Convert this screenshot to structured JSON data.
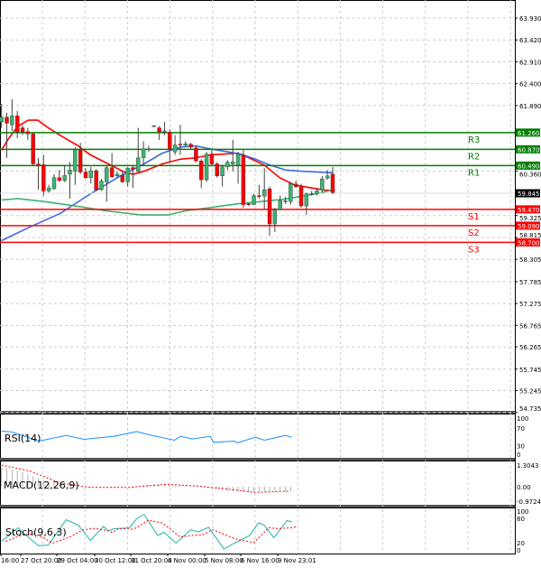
{
  "price_axis": {
    "labels": [
      63.93,
      63.42,
      62.91,
      62.4,
      61.89,
      60.36,
      59.325,
      58.815,
      58.305,
      57.785,
      57.275,
      56.765,
      56.265,
      55.745,
      55.245,
      54.735
    ],
    "label_text": [
      "63.930",
      "63.420",
      "62.910",
      "62.400",
      "61.890",
      "60.360",
      "59.325",
      "58.815",
      "58.305",
      "57.785",
      "57.275",
      "56.765",
      "56.265",
      "55.745",
      "55.245",
      "54.735"
    ]
  },
  "current_price": {
    "value": 59.845,
    "text": "59.845",
    "color": "#000000"
  },
  "levels": [
    {
      "name": "R3",
      "value": 61.26,
      "text": "61.260",
      "color": "#008000"
    },
    {
      "name": "R2",
      "value": 60.87,
      "text": "60.870",
      "color": "#008000"
    },
    {
      "name": "R1",
      "value": 60.49,
      "text": "60.490",
      "color": "#008000"
    },
    {
      "name": "S1",
      "value": 59.47,
      "text": "59.470",
      "color": "#ff0000"
    },
    {
      "name": "S2",
      "value": 59.09,
      "text": "59.090",
      "color": "#ff0000"
    },
    {
      "name": "S3",
      "value": 58.7,
      "text": "58.700",
      "color": "#ff0000"
    }
  ],
  "time_axis": [
    "16:00",
    "27 Oct 20:00",
    "29 Oct 04:00",
    "30 Oct 12:00",
    "31 Oct 20:00",
    "4 Nov 00:00",
    "5 Nov 08:00",
    "6 Nov 16:00",
    "9 Nov 23:01"
  ],
  "colors": {
    "up": "#3cb371",
    "down": "#ff0000",
    "ma_fast": "#ff0000",
    "ma_mid": "#4169e1",
    "ma_slow": "#3cb371",
    "rsi": "#1e90ff",
    "stoch_main": "#20b2aa",
    "stoch_signal": "#ff0000",
    "macd_signal": "#ff0000",
    "macd_hist": "#a0a0a0"
  },
  "chart_data": {
    "type": "candlestick",
    "ohlc": [
      [
        61.51,
        61.93,
        61.37,
        61.62
      ],
      [
        61.62,
        61.72,
        60.67,
        61.48
      ],
      [
        61.44,
        62.04,
        61.3,
        61.65
      ],
      [
        61.65,
        61.76,
        61.13,
        61.27
      ],
      [
        61.37,
        61.44,
        61.2,
        61.27
      ],
      [
        61.28,
        61.37,
        61.09,
        61.23
      ],
      [
        61.23,
        61.27,
        60.5,
        60.53
      ],
      [
        60.53,
        60.67,
        59.93,
        60.48
      ],
      [
        60.51,
        60.74,
        59.79,
        59.9
      ],
      [
        59.9,
        60.04,
        59.86,
        59.97
      ],
      [
        59.95,
        60.29,
        59.93,
        60.21
      ],
      [
        60.21,
        60.39,
        60.11,
        60.14
      ],
      [
        60.14,
        60.5,
        60.11,
        60.26
      ],
      [
        60.29,
        60.57,
        59.72,
        60.39
      ],
      [
        60.36,
        60.92,
        60.04,
        60.86
      ],
      [
        60.85,
        61.02,
        60.29,
        60.34
      ],
      [
        60.34,
        60.43,
        60.18,
        60.21
      ],
      [
        60.21,
        60.46,
        60.07,
        60.37
      ],
      [
        60.37,
        60.41,
        59.9,
        59.92
      ],
      [
        59.93,
        60.18,
        59.9,
        60.13
      ],
      [
        60.11,
        60.5,
        59.65,
        60.44
      ],
      [
        60.44,
        60.78,
        60.2,
        60.23
      ],
      [
        60.25,
        60.36,
        60.21,
        60.29
      ],
      [
        60.27,
        60.36,
        60.09,
        60.11
      ],
      [
        60.11,
        60.46,
        60.0,
        60.43
      ],
      [
        60.44,
        60.5,
        59.97,
        60.41
      ],
      [
        60.36,
        61.37,
        60.34,
        60.67
      ],
      [
        60.67,
        61.06,
        60.53,
        60.88
      ],
      [
        60.86,
        60.95,
        60.81,
        60.88
      ],
      [
        61.41,
        61.44,
        61.39,
        61.42
      ],
      [
        61.37,
        61.41,
        61.09,
        61.27
      ],
      [
        61.27,
        61.51,
        61.2,
        61.3
      ],
      [
        61.27,
        61.34,
        60.57,
        60.88
      ],
      [
        60.81,
        61.2,
        60.74,
        60.97
      ],
      [
        60.99,
        61.44,
        60.74,
        60.97
      ],
      [
        60.97,
        61.06,
        60.92,
        61.0
      ],
      [
        60.99,
        61.02,
        60.88,
        60.92
      ],
      [
        60.9,
        60.95,
        60.57,
        60.6
      ],
      [
        60.6,
        60.64,
        59.97,
        60.16
      ],
      [
        60.16,
        60.81,
        60.11,
        60.76
      ],
      [
        60.76,
        60.85,
        60.5,
        60.53
      ],
      [
        60.53,
        60.57,
        60.21,
        60.25
      ],
      [
        60.25,
        60.5,
        60.0,
        60.46
      ],
      [
        60.46,
        60.62,
        60.39,
        60.57
      ],
      [
        60.53,
        61.09,
        60.36,
        60.58
      ],
      [
        60.5,
        60.81,
        60.07,
        60.76
      ],
      [
        60.74,
        60.85,
        59.51,
        59.58
      ],
      [
        59.6,
        59.62,
        59.55,
        59.58
      ],
      [
        59.58,
        59.83,
        59.57,
        59.79
      ],
      [
        59.79,
        60.04,
        59.72,
        59.78
      ],
      [
        59.78,
        60.43,
        59.48,
        59.93
      ],
      [
        59.95,
        60.0,
        58.85,
        59.13
      ],
      [
        59.13,
        59.51,
        58.94,
        59.46
      ],
      [
        59.46,
        59.79,
        59.44,
        59.67
      ],
      [
        59.65,
        59.76,
        59.6,
        59.67
      ],
      [
        59.65,
        60.11,
        59.58,
        60.07
      ],
      [
        60.06,
        60.14,
        59.97,
        60.0
      ],
      [
        60.02,
        60.07,
        59.51,
        59.55
      ],
      [
        59.55,
        59.86,
        59.34,
        59.83
      ],
      [
        59.83,
        59.9,
        59.79,
        59.84
      ],
      [
        59.83,
        59.97,
        59.79,
        59.9
      ],
      [
        59.92,
        60.25,
        59.86,
        60.18
      ],
      [
        60.2,
        60.39,
        60.16,
        60.25
      ],
      [
        60.29,
        60.46,
        59.83,
        59.86
      ]
    ],
    "ylim": [
      54.6,
      64.3
    ],
    "moving_averages": [
      {
        "key": "ma_fast",
        "points": [
          [
            0,
            60.85
          ],
          [
            1.4,
            61.13
          ],
          [
            3.1,
            61.41
          ],
          [
            5.1,
            61.55
          ],
          [
            6.9,
            61.55
          ],
          [
            8.9,
            61.37
          ],
          [
            11.1,
            61.2
          ],
          [
            14.6,
            60.95
          ],
          [
            16.9,
            60.74
          ],
          [
            20.3,
            60.53
          ],
          [
            23.7,
            60.32
          ],
          [
            25.1,
            60.29
          ],
          [
            27.1,
            60.36
          ],
          [
            30.6,
            60.53
          ],
          [
            34,
            60.64
          ],
          [
            36.9,
            60.67
          ],
          [
            39.7,
            60.74
          ],
          [
            44.9,
            60.78
          ],
          [
            47.1,
            60.67
          ],
          [
            50,
            60.5
          ],
          [
            52.9,
            60.21
          ],
          [
            55.7,
            60.04
          ],
          [
            58,
            59.99
          ],
          [
            61.4,
            59.92
          ],
          [
            63.4,
            59.9
          ]
        ]
      },
      {
        "key": "ma_mid",
        "points": [
          [
            0,
            58.74
          ],
          [
            5.4,
            59.06
          ],
          [
            11.1,
            59.37
          ],
          [
            16.9,
            59.83
          ],
          [
            22.6,
            60.25
          ],
          [
            27.1,
            60.53
          ],
          [
            30.6,
            60.78
          ],
          [
            34,
            60.92
          ],
          [
            36.9,
            60.95
          ],
          [
            39.7,
            60.88
          ],
          [
            43.1,
            60.81
          ],
          [
            45.4,
            60.76
          ],
          [
            48.3,
            60.64
          ],
          [
            51.1,
            60.5
          ],
          [
            54,
            60.39
          ],
          [
            56.9,
            60.36
          ],
          [
            60.3,
            60.34
          ],
          [
            63.1,
            60.32
          ]
        ]
      },
      {
        "key": "ma_slow",
        "points": [
          [
            0,
            59.69
          ],
          [
            3.1,
            59.72
          ],
          [
            8.3,
            59.65
          ],
          [
            14,
            59.55
          ],
          [
            19.7,
            59.44
          ],
          [
            26.6,
            59.34
          ],
          [
            31.7,
            59.34
          ],
          [
            35.1,
            59.44
          ],
          [
            39.7,
            59.51
          ],
          [
            44.9,
            59.6
          ],
          [
            48.3,
            59.64
          ],
          [
            54,
            59.71
          ],
          [
            59.7,
            59.83
          ],
          [
            63.4,
            59.93
          ]
        ]
      }
    ],
    "rsi": {
      "label": "RSI(14)",
      "levels_text": [
        "100",
        "70",
        "30",
        "0"
      ],
      "levels": [
        100,
        70,
        30,
        0
      ],
      "points": [
        [
          0,
          63
        ],
        [
          2,
          61
        ],
        [
          7.1,
          40
        ],
        [
          12.3,
          53
        ],
        [
          15.7,
          44
        ],
        [
          21.4,
          51
        ],
        [
          25.7,
          62
        ],
        [
          28.3,
          54
        ],
        [
          32.9,
          42
        ],
        [
          34,
          51
        ],
        [
          36.3,
          45
        ],
        [
          39.7,
          51
        ],
        [
          40.3,
          37
        ],
        [
          44.3,
          40
        ],
        [
          44.9,
          36
        ],
        [
          48.3,
          49
        ],
        [
          50,
          42
        ],
        [
          54,
          53
        ],
        [
          55.2,
          49
        ]
      ]
    },
    "macd": {
      "label": "MACD(12,26,9)",
      "levels_text": [
        "1.3043",
        "0.00",
        "-0.9724"
      ],
      "ylim": [
        -0.9724,
        1.3043
      ],
      "signal": [
        [
          0,
          1.3
        ],
        [
          5.4,
          0.95
        ],
        [
          11.1,
          0.23
        ],
        [
          16.9,
          -0.04
        ],
        [
          24.3,
          -0.04
        ],
        [
          31.2,
          0.14
        ],
        [
          37,
          0.05
        ],
        [
          42.6,
          -0.13
        ],
        [
          48.3,
          -0.34
        ],
        [
          54.6,
          -0.27
        ]
      ]
    },
    "stoch": {
      "label": "Stoch(9,6,3)",
      "levels_text": [
        "100",
        "80",
        "20",
        "0"
      ],
      "levels": [
        100,
        80,
        20,
        0
      ],
      "points": [
        [
          0,
          27
        ],
        [
          1.4,
          40
        ],
        [
          3.1,
          57
        ],
        [
          5.4,
          33
        ],
        [
          7.1,
          17
        ],
        [
          8.9,
          19
        ],
        [
          12.3,
          75
        ],
        [
          14.6,
          63
        ],
        [
          16.9,
          29
        ],
        [
          19.4,
          60
        ],
        [
          20.3,
          50
        ],
        [
          21.4,
          55
        ],
        [
          24.3,
          57
        ],
        [
          25.7,
          77
        ],
        [
          27.1,
          87
        ],
        [
          29.7,
          40
        ],
        [
          30.9,
          47
        ],
        [
          33.2,
          23
        ],
        [
          36,
          53
        ],
        [
          37.4,
          48
        ],
        [
          39.4,
          58
        ],
        [
          42.3,
          10
        ],
        [
          44.3,
          23
        ],
        [
          47.2,
          40
        ],
        [
          48.9,
          68
        ],
        [
          50,
          63
        ],
        [
          51.8,
          35
        ],
        [
          54.3,
          73
        ],
        [
          55.2,
          70
        ]
      ]
    }
  }
}
